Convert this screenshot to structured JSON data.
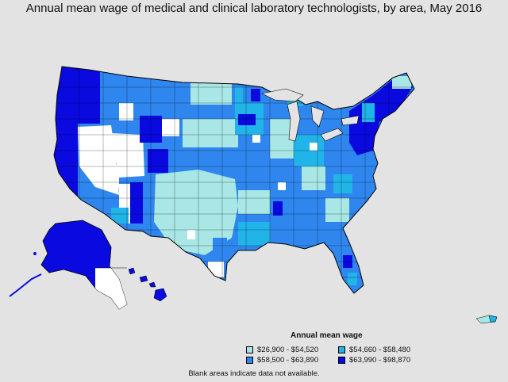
{
  "title": "Annual mean wage of medical and clinical laboratory technologists, by area, May 2016",
  "legend": {
    "title": "Annual mean wage",
    "items": [
      {
        "label": "$26,900 - $54,520",
        "color": "#a8e7e5"
      },
      {
        "label": "$54,660 - $58,480",
        "color": "#21b4e8"
      },
      {
        "label": "$58,500 - $63,890",
        "color": "#2f86ef"
      },
      {
        "label": "$63,990 - $98,870",
        "color": "#0a0ae0"
      }
    ]
  },
  "note": "Blank areas indicate data not available.",
  "colors": {
    "background": "#e3e3e3",
    "no_data": "#ffffff",
    "border": "#000000"
  }
}
